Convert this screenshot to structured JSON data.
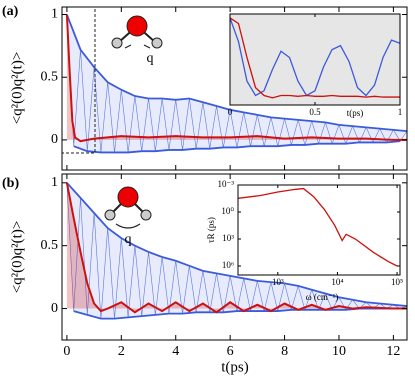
{
  "chart_data": [
    {
      "type": "line",
      "panel_label": "(a)",
      "ylabel": "<q²(0)q²(t)>",
      "annotation": "q",
      "xlim": [
        -0.18,
        12.5
      ],
      "ylim": [
        -0.24,
        1.06
      ],
      "xticks": [
        0,
        2,
        4,
        6,
        8,
        10,
        12
      ],
      "xtick_labels": false,
      "yticks": [
        0,
        0.5,
        1
      ],
      "series": [
        {
          "color": "#3b5bdb",
          "envelope": true,
          "x": [
            0,
            0.25,
            0.5,
            0.75,
            1,
            1.25,
            1.5,
            1.75,
            2,
            2.25,
            2.5,
            2.75,
            3,
            3.25,
            3.5,
            3.75,
            4,
            4.25,
            4.5,
            4.75,
            5,
            5.25,
            5.5,
            5.75,
            6,
            6.25,
            6.5,
            6.75,
            7,
            7.25,
            7.5,
            7.75,
            8,
            8.25,
            8.5,
            8.75,
            9,
            9.25,
            9.5,
            9.75,
            10,
            10.25,
            10.5,
            10.75,
            11,
            11.25,
            11.5,
            11.75,
            12,
            12.25,
            12.5
          ],
          "values": [
            1,
            -0.05,
            0.72,
            -0.09,
            0.58,
            -0.1,
            0.46,
            -0.1,
            0.4,
            -0.1,
            0.35,
            -0.09,
            0.33,
            -0.09,
            0.33,
            -0.08,
            0.32,
            -0.08,
            0.33,
            -0.07,
            0.3,
            -0.07,
            0.27,
            -0.06,
            0.24,
            -0.06,
            0.22,
            -0.05,
            0.2,
            -0.05,
            0.18,
            -0.05,
            0.17,
            -0.04,
            0.16,
            -0.04,
            0.15,
            -0.03,
            0.14,
            -0.03,
            0.12,
            -0.03,
            0.11,
            -0.02,
            0.1,
            -0.02,
            0.09,
            -0.02,
            0.08,
            -0.01,
            0.07
          ]
        },
        {
          "color": "#cc1111",
          "fill_under": true,
          "x": [
            0,
            0.1,
            0.2,
            0.3,
            0.5,
            1,
            1.5,
            2,
            3,
            4,
            5,
            6,
            7,
            8,
            9,
            10,
            11,
            12,
            12.5
          ],
          "values": [
            1,
            0.55,
            0.15,
            0.02,
            -0.01,
            0.01,
            0.02,
            0.03,
            0.02,
            0.03,
            0.02,
            0.02,
            0.03,
            0.01,
            0.02,
            0.01,
            0.01,
            0,
            0
          ]
        }
      ]
    },
    {
      "type": "line",
      "background": "#e6e6e6",
      "xlabel": "t(ps)",
      "xlim": [
        0,
        1
      ],
      "ylim": [
        -0.1,
        1.05
      ],
      "xticks": [
        0,
        0.5,
        1
      ],
      "series": [
        {
          "color": "#3b5bdb",
          "x": [
            0,
            0.05,
            0.1,
            0.15,
            0.2,
            0.25,
            0.3,
            0.35,
            0.4,
            0.45,
            0.5,
            0.55,
            0.6,
            0.65,
            0.7,
            0.75,
            0.8,
            0.85,
            0.9,
            0.95,
            1
          ],
          "values": [
            1,
            0.7,
            0.2,
            0.02,
            0.08,
            0.35,
            0.58,
            0.5,
            0.2,
            0.02,
            0.08,
            0.38,
            0.6,
            0.65,
            0.45,
            0.12,
            0.02,
            0.15,
            0.5,
            0.72,
            0.68
          ]
        },
        {
          "color": "#cc1111",
          "x": [
            0,
            0.05,
            0.1,
            0.15,
            0.2,
            0.25,
            0.3,
            0.35,
            0.4,
            0.45,
            0.5,
            0.55,
            0.6,
            0.65,
            0.7,
            0.75,
            0.8,
            0.85,
            0.9,
            0.95,
            1
          ],
          "values": [
            1,
            0.93,
            0.5,
            0.12,
            0.02,
            -0.01,
            0.02,
            0.02,
            0.01,
            0.02,
            0.01,
            0.01,
            0.02,
            0.01,
            0.01,
            0.01,
            0,
            0.01,
            0,
            0,
            0
          ]
        }
      ]
    },
    {
      "type": "line",
      "panel_label": "(b)",
      "ylabel": "<q²(0)q²(t)>",
      "xlabel": "t(ps)",
      "annotation": "q",
      "xlim": [
        -0.18,
        12.5
      ],
      "ylim": [
        -0.25,
        1.07
      ],
      "xticks": [
        0,
        2,
        4,
        6,
        8,
        10,
        12
      ],
      "yticks": [
        0,
        0.5,
        1
      ],
      "series": [
        {
          "color": "#3b5bdb",
          "envelope": true,
          "x": [
            0,
            0.25,
            0.5,
            0.75,
            1,
            1.25,
            1.5,
            1.75,
            2,
            2.25,
            2.5,
            2.75,
            3,
            3.25,
            3.5,
            3.75,
            4,
            4.25,
            4.5,
            4.75,
            5,
            5.25,
            5.5,
            5.75,
            6,
            6.25,
            6.5,
            6.75,
            7,
            7.25,
            7.5,
            7.75,
            8,
            8.25,
            8.5,
            8.75,
            9,
            9.25,
            9.5,
            9.75,
            10,
            10.25,
            10.5,
            10.75,
            11,
            11.25,
            11.5,
            11.75,
            12,
            12.25,
            12.5
          ],
          "values": [
            1,
            -0.02,
            0.88,
            -0.05,
            0.76,
            -0.08,
            0.64,
            -0.08,
            0.56,
            -0.07,
            0.5,
            -0.06,
            0.45,
            -0.05,
            0.41,
            -0.04,
            0.38,
            -0.04,
            0.34,
            -0.03,
            0.3,
            -0.03,
            0.28,
            -0.03,
            0.26,
            -0.02,
            0.24,
            -0.02,
            0.22,
            -0.02,
            0.21,
            -0.02,
            0.2,
            -0.01,
            0.18,
            -0.01,
            0.15,
            -0.01,
            0.12,
            -0.01,
            0.09,
            -0.01,
            0.07,
            0,
            0.05,
            0,
            0.04,
            0,
            0.03,
            0,
            0.02
          ]
        },
        {
          "color": "#cc1111",
          "fill_under": true,
          "x": [
            0,
            0.25,
            0.5,
            0.75,
            1,
            1.25,
            1.5,
            2,
            2.5,
            3,
            3.5,
            4,
            4.5,
            5,
            5.5,
            6,
            6.5,
            7,
            7.5,
            8,
            8.5,
            9,
            9.5,
            10,
            10.5,
            11,
            12,
            12.5
          ],
          "values": [
            1,
            0.72,
            0.45,
            0.2,
            0.04,
            -0.02,
            0,
            0.05,
            -0.03,
            0.04,
            -0.02,
            0.05,
            -0.02,
            0.04,
            -0.03,
            0.05,
            -0.02,
            0.03,
            -0.02,
            0.04,
            -0.01,
            0.03,
            -0.01,
            0.02,
            0,
            0.01,
            0,
            0
          ]
        }
      ]
    },
    {
      "type": "line",
      "background": "#ffffff",
      "xlabel": "ω (cm⁻¹)",
      "ylabel": "τR (ps)",
      "xscale": "log",
      "yscale": "log",
      "y_inverted": true,
      "xlim": [
        215,
        112000
      ],
      "ylim": [
        0.001,
        10000000
      ],
      "xticks": [
        {
          "value": 1000,
          "label": "10³"
        },
        {
          "value": 10000,
          "label": "10⁴"
        },
        {
          "value": 100000,
          "label": "10⁵"
        }
      ],
      "yticks": [
        {
          "value": 0.001,
          "label": "10⁻³"
        },
        {
          "value": 1,
          "label": "10⁰"
        },
        {
          "value": 1000,
          "label": "10³"
        },
        {
          "value": 1000000,
          "label": "10⁶"
        }
      ],
      "series": [
        {
          "color": "#cc1111",
          "x": [
            215,
            500,
            1000,
            2000,
            2700,
            4000,
            6000,
            9000,
            12000,
            14000,
            20000,
            40000,
            70000,
            100000
          ],
          "values": [
            0.03,
            0.015,
            0.006,
            0.003,
            0.0025,
            0.02,
            0.5,
            30,
            1500,
            300,
            1000,
            30000,
            300000,
            1000000
          ]
        }
      ]
    }
  ]
}
